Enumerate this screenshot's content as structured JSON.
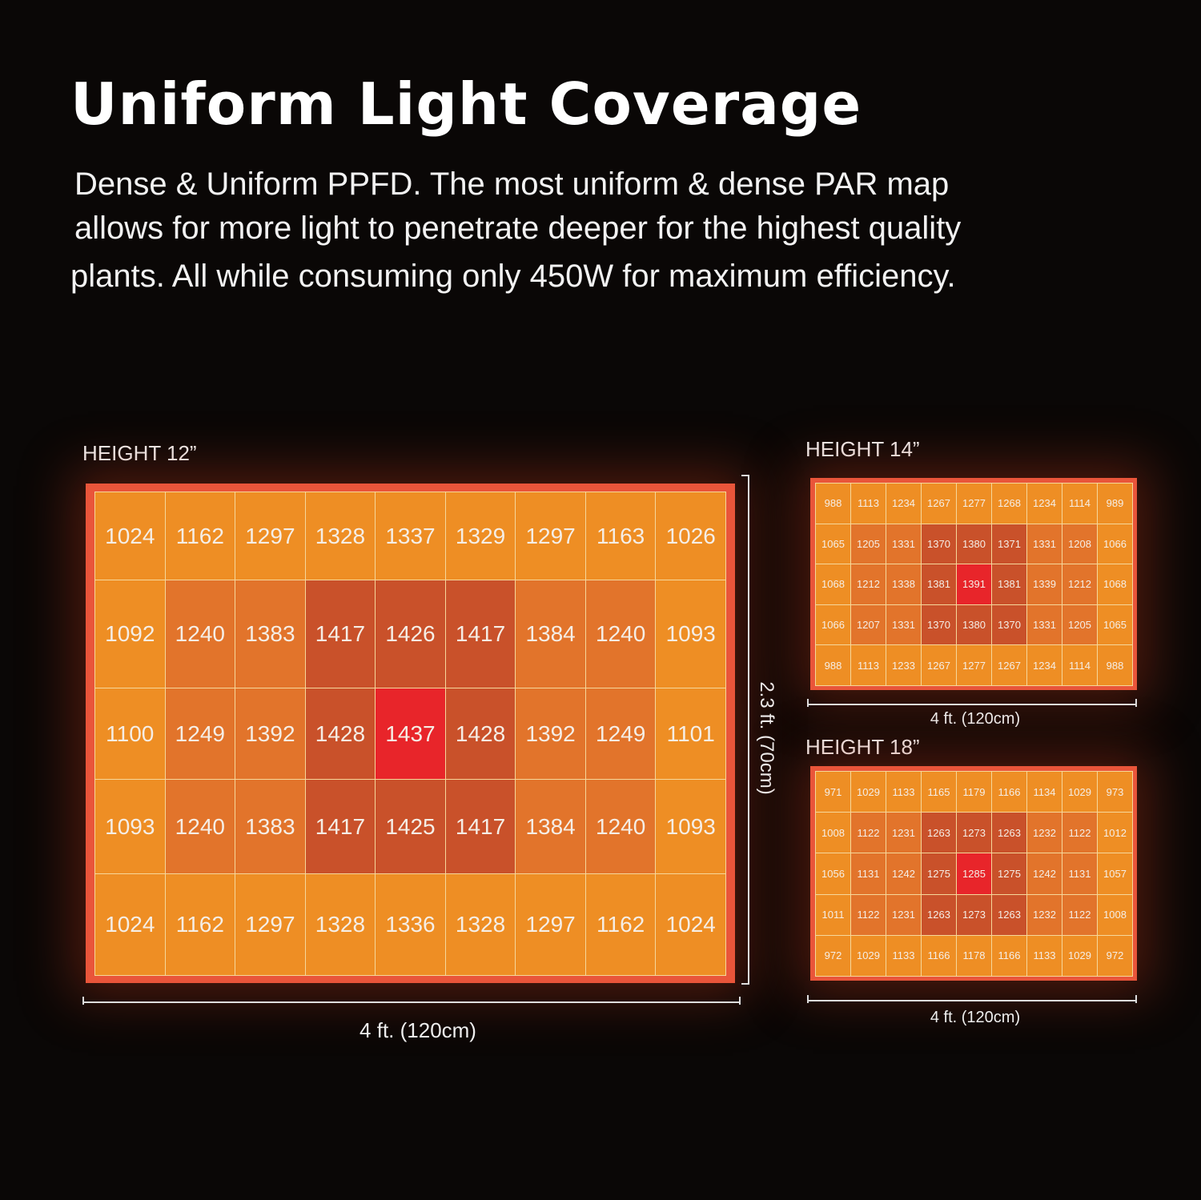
{
  "title": "Uniform Light Coverage",
  "description": [
    "Dense & Uniform PPFD.  The most uniform & dense PAR map",
    "allows for more light to penetrate deeper for the highest quality",
    "plants.  All while consuming only 450W for maximum efficiency."
  ],
  "colors": {
    "level0": "#ee8e24",
    "level1": "#e2742b",
    "level2": "#c9512a",
    "level3": "#e8252a",
    "frame": "#e9553a",
    "background": "#0a0706"
  },
  "chart_data": [
    {
      "type": "heatmap",
      "title": "HEIGHT 12”",
      "xlabel": "4 ft. (120cm)",
      "ylabel": "2.3 ft. (70cm)",
      "values": [
        [
          1024,
          1162,
          1297,
          1328,
          1337,
          1329,
          1297,
          1163,
          1026
        ],
        [
          1092,
          1240,
          1383,
          1417,
          1426,
          1417,
          1384,
          1240,
          1093
        ],
        [
          1100,
          1249,
          1392,
          1428,
          1437,
          1428,
          1392,
          1249,
          1101
        ],
        [
          1093,
          1240,
          1383,
          1417,
          1425,
          1417,
          1384,
          1240,
          1093
        ],
        [
          1024,
          1162,
          1297,
          1328,
          1336,
          1328,
          1297,
          1162,
          1024
        ]
      ]
    },
    {
      "type": "heatmap",
      "title": "HEIGHT 14”",
      "xlabel": "4 ft. (120cm)",
      "values": [
        [
          988,
          1113,
          1234,
          1267,
          1277,
          1268,
          1234,
          1114,
          989
        ],
        [
          1065,
          1205,
          1331,
          1370,
          1380,
          1371,
          1331,
          1208,
          1066
        ],
        [
          1068,
          1212,
          1338,
          1381,
          1391,
          1381,
          1339,
          1212,
          1068
        ],
        [
          1066,
          1207,
          1331,
          1370,
          1380,
          1370,
          1331,
          1205,
          1065
        ],
        [
          988,
          1113,
          1233,
          1267,
          1277,
          1267,
          1234,
          1114,
          988
        ]
      ]
    },
    {
      "type": "heatmap",
      "title": "HEIGHT 18”",
      "xlabel": "4 ft. (120cm)",
      "values": [
        [
          971,
          1029,
          1133,
          1165,
          1179,
          1166,
          1134,
          1029,
          973
        ],
        [
          1008,
          1122,
          1231,
          1263,
          1273,
          1263,
          1232,
          1122,
          1012
        ],
        [
          1056,
          1131,
          1242,
          1275,
          1285,
          1275,
          1242,
          1131,
          1057
        ],
        [
          1011,
          1122,
          1231,
          1263,
          1273,
          1263,
          1232,
          1122,
          1008
        ],
        [
          972,
          1029,
          1133,
          1166,
          1178,
          1166,
          1133,
          1029,
          972
        ]
      ]
    }
  ],
  "color_levels": [
    [
      0,
      0,
      0,
      0,
      0,
      0,
      0,
      0,
      0
    ],
    [
      0,
      1,
      1,
      2,
      2,
      2,
      1,
      1,
      0
    ],
    [
      0,
      1,
      1,
      2,
      3,
      2,
      1,
      1,
      0
    ],
    [
      0,
      1,
      1,
      2,
      2,
      2,
      1,
      1,
      0
    ],
    [
      0,
      0,
      0,
      0,
      0,
      0,
      0,
      0,
      0
    ]
  ]
}
